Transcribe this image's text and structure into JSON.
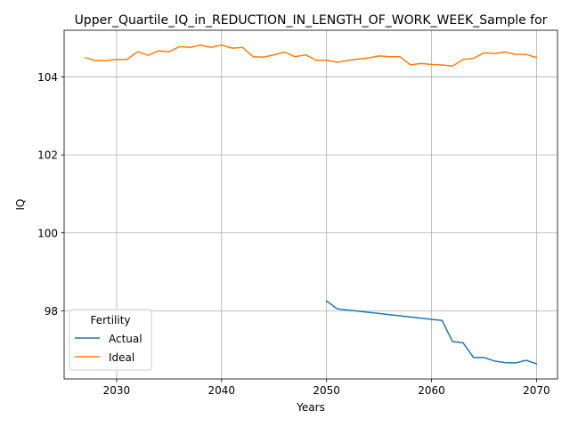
{
  "chart_data": {
    "type": "line",
    "title": "Upper_Quartile_IQ_in_REDUCTION_IN_LENGTH_OF_WORK_WEEK_Sample for",
    "xlabel": "Years",
    "ylabel": "IQ",
    "xlim": [
      2025,
      2072
    ],
    "ylim": [
      96.25,
      105.2
    ],
    "xticks": [
      2030,
      2040,
      2050,
      2060,
      2070
    ],
    "yticks": [
      98,
      100,
      102,
      104
    ],
    "grid": true,
    "legend": {
      "title": "Fertility",
      "placement": "lower-left"
    },
    "series": [
      {
        "name": "Actual",
        "color": "#1f77b4",
        "x": [
          2050,
          2051,
          2052,
          2053,
          2054,
          2055,
          2056,
          2057,
          2058,
          2059,
          2060,
          2061,
          2062,
          2063,
          2064,
          2065,
          2066,
          2067,
          2068,
          2069,
          2070
        ],
        "y": [
          98.25,
          98.05,
          98.02,
          97.99,
          97.96,
          97.93,
          97.9,
          97.87,
          97.84,
          97.81,
          97.78,
          97.75,
          97.21,
          97.18,
          96.8,
          96.8,
          96.71,
          96.67,
          96.66,
          96.73,
          96.64
        ]
      },
      {
        "name": "Ideal",
        "color": "#ff7f0e",
        "x": [
          2027,
          2028,
          2029,
          2030,
          2031,
          2032,
          2033,
          2034,
          2035,
          2036,
          2037,
          2038,
          2039,
          2040,
          2041,
          2042,
          2043,
          2044,
          2045,
          2046,
          2047,
          2048,
          2049,
          2050,
          2051,
          2052,
          2053,
          2054,
          2055,
          2056,
          2057,
          2058,
          2059,
          2060,
          2061,
          2062,
          2063,
          2064,
          2065,
          2066,
          2067,
          2068,
          2069,
          2070
        ],
        "y": [
          104.5,
          104.42,
          104.42,
          104.45,
          104.45,
          104.65,
          104.56,
          104.67,
          104.65,
          104.78,
          104.76,
          104.82,
          104.76,
          104.82,
          104.74,
          104.76,
          104.52,
          104.51,
          104.57,
          104.64,
          104.52,
          104.57,
          104.43,
          104.43,
          104.38,
          104.42,
          104.46,
          104.49,
          104.54,
          104.52,
          104.52,
          104.31,
          104.35,
          104.32,
          104.31,
          104.28,
          104.45,
          104.48,
          104.62,
          104.6,
          104.64,
          104.58,
          104.58,
          104.5
        ]
      }
    ]
  }
}
